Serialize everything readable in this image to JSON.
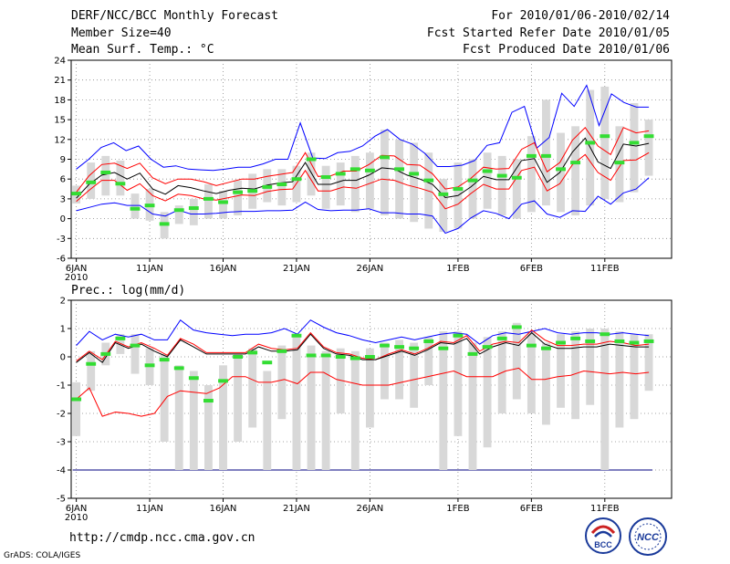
{
  "header": {
    "title": "DERF/NCC/BCC Monthly Forecast",
    "member_size": "Member Size=40",
    "period": "For 2010/01/06-2010/02/14",
    "started": "Fcst Started Refer Date 2010/01/05",
    "produced": "Fcst Produced Date 2010/01/06"
  },
  "footer": {
    "url": "http://cmdp.ncc.cma.gov.cn",
    "grads": "GrADS: COLA/IGES",
    "logo_left_text": "BCC",
    "logo_right_text": "NCC"
  },
  "colors": {
    "max_line": "#0000ff",
    "min_line": "#0000ff",
    "upper_line": "#ff0000",
    "lower_line": "#ff0000",
    "mean_line": "#000000",
    "box": "#d8d8d8",
    "marker": "#33dd33",
    "floor_line": "#000080"
  },
  "chart_data": [
    {
      "type": "box-line",
      "title": "Mean Surf. Temp.: °C",
      "ylim": [
        -6,
        24
      ],
      "yticks": [
        "24",
        "21",
        "18",
        "15",
        "12",
        "9",
        "6",
        "3",
        "0",
        "-3",
        "-6"
      ],
      "x_tick_labels": [
        "6JAN",
        "11JAN",
        "16JAN",
        "21JAN",
        "26JAN",
        "1FEB",
        "6FEB",
        "11FEB"
      ],
      "x_tick_days": [
        1,
        6,
        11,
        16,
        21,
        27,
        32,
        37
      ],
      "year_label": "2010",
      "days": 40,
      "series": [
        {
          "name": "max",
          "values": [
            7.5,
            9,
            10.8,
            11.5,
            10.3,
            11,
            9,
            7.8,
            8,
            7.5,
            7.4,
            7.3,
            7.5,
            7.8,
            7.8,
            8.3,
            9,
            9,
            14.5,
            9.2,
            9.1,
            10,
            10.2,
            11,
            12.5,
            13.5,
            12,
            11.3,
            9.9,
            7.9,
            7.9,
            8.1,
            8.8,
            11.1,
            11.5,
            16.1,
            17,
            10.7,
            12.3,
            19,
            17,
            20.2,
            14.1,
            18.9,
            17.6,
            16.9,
            16.9
          ]
        },
        {
          "name": "upper",
          "values": [
            4,
            6.5,
            8.2,
            8.4,
            7.6,
            8.4,
            6.2,
            5.3,
            6,
            6,
            5.6,
            5,
            5.5,
            6,
            6,
            6.4,
            6.7,
            7,
            10,
            6.4,
            6.5,
            7.2,
            7.2,
            8.2,
            9.6,
            9.5,
            8.2,
            8.1,
            6.8,
            4.5,
            4.8,
            6.1,
            7.8,
            7.5,
            7.6,
            10.5,
            11.5,
            7.1,
            8.5,
            11.9,
            13.8,
            11,
            9.7,
            13.8,
            13,
            13.3
          ]
        },
        {
          "name": "mean",
          "values": [
            3.1,
            5.2,
            6.6,
            7,
            6,
            6.9,
            4.5,
            3.7,
            5,
            4.7,
            4.2,
            3.8,
            4.3,
            4.6,
            4.5,
            5.1,
            5.4,
            5.6,
            8.5,
            5.2,
            5.2,
            5.8,
            5.8,
            6.6,
            7.7,
            7.5,
            6.6,
            6,
            5.2,
            3.2,
            3.5,
            4.8,
            6.4,
            5.9,
            5.9,
            8.8,
            9.1,
            5.5,
            7,
            10.1,
            12.2,
            8.6,
            7.6,
            11.3,
            11,
            11.4
          ]
        },
        {
          "name": "lower",
          "values": [
            2.6,
            4.3,
            5.8,
            5.8,
            4.3,
            5.3,
            3.5,
            2.7,
            3.7,
            3.5,
            3,
            2.8,
            3.2,
            3.6,
            3.5,
            4.1,
            4.4,
            4.5,
            7.3,
            4.2,
            4.2,
            4.8,
            4.6,
            5.3,
            6,
            5.8,
            5.1,
            4.6,
            4,
            1.5,
            2.2,
            3.8,
            5.2,
            4.5,
            4.5,
            7.3,
            7.8,
            4.2,
            5.3,
            8.2,
            9.7,
            7,
            5.8,
            8.8,
            8.9,
            10
          ]
        },
        {
          "name": "min",
          "values": [
            1.2,
            1.7,
            2.2,
            2.4,
            2,
            2,
            0.7,
            0.4,
            1.3,
            0.7,
            0.7,
            0.8,
            1,
            1.1,
            1.1,
            1.2,
            1.2,
            1.3,
            2.5,
            1.4,
            1.2,
            1.3,
            1.3,
            1.5,
            0.9,
            0.9,
            0.7,
            0.7,
            0.4,
            -2.2,
            -1.5,
            0.1,
            1.2,
            0.8,
            0,
            2.2,
            2.7,
            0.7,
            0.2,
            1.2,
            1.1,
            3.4,
            2.2,
            3.9,
            4.5,
            6.2
          ]
        }
      ],
      "boxes": [
        {
          "min": 2.3,
          "max": 5.0,
          "marker": 3.8
        },
        {
          "min": 3.0,
          "max": 8.5,
          "marker": 5.5
        },
        {
          "min": 3.5,
          "max": 9.5,
          "marker": 7.0
        },
        {
          "min": 3.5,
          "max": 8.8,
          "marker": 5.3
        },
        {
          "min": 0.0,
          "max": 3.8,
          "marker": 1.5
        },
        {
          "min": -0.3,
          "max": 4.5,
          "marker": 2.0
        },
        {
          "min": -3.0,
          "max": 1.0,
          "marker": -0.8
        },
        {
          "min": -0.8,
          "max": 2.0,
          "marker": 1.3
        },
        {
          "min": -1.0,
          "max": 3.0,
          "marker": 1.6
        },
        {
          "min": 0.0,
          "max": 5.2,
          "marker": 3.0
        },
        {
          "min": 0.0,
          "max": 4.2,
          "marker": 2.5
        },
        {
          "min": 0.5,
          "max": 5.8,
          "marker": 4.0
        },
        {
          "min": 1.5,
          "max": 6.8,
          "marker": 4.2
        },
        {
          "min": 2.5,
          "max": 7.5,
          "marker": 4.8
        },
        {
          "min": 2.0,
          "max": 7.5,
          "marker": 5.2
        },
        {
          "min": 2.5,
          "max": 8.0,
          "marker": 6.0
        },
        {
          "min": 3.5,
          "max": 10.0,
          "marker": 9.0
        },
        {
          "min": 1.5,
          "max": 8.0,
          "marker": 6.3
        },
        {
          "min": 2.0,
          "max": 8.5,
          "marker": 6.8
        },
        {
          "min": 1.0,
          "max": 9.5,
          "marker": 7.5
        },
        {
          "min": 1.5,
          "max": 10.0,
          "marker": 7.3
        },
        {
          "min": 0.5,
          "max": 13.5,
          "marker": 9.3
        },
        {
          "min": 0.0,
          "max": 12.0,
          "marker": 7.5
        },
        {
          "min": -0.5,
          "max": 11.5,
          "marker": 6.8
        },
        {
          "min": -1.5,
          "max": 10.0,
          "marker": 5.8
        },
        {
          "min": -2.0,
          "max": 6.0,
          "marker": 3.7
        },
        {
          "min": -1.5,
          "max": 8.5,
          "marker": 4.5
        },
        {
          "min": 0.0,
          "max": 9.0,
          "marker": 5.8
        },
        {
          "min": 1.5,
          "max": 10.0,
          "marker": 7.2
        },
        {
          "min": 0.5,
          "max": 9.5,
          "marker": 6.5
        },
        {
          "min": 0.0,
          "max": 9.0,
          "marker": 6.2
        },
        {
          "min": 1.0,
          "max": 12.5,
          "marker": 9.5
        },
        {
          "min": 2.0,
          "max": 18.0,
          "marker": 9.5
        },
        {
          "min": 1.0,
          "max": 13.0,
          "marker": 7.5
        },
        {
          "min": 0.5,
          "max": 14.0,
          "marker": 8.5
        },
        {
          "min": 2.0,
          "max": 19.5,
          "marker": 11.5
        },
        {
          "min": 3.0,
          "max": 20.0,
          "marker": 12.5
        },
        {
          "min": 2.5,
          "max": 14.0,
          "marker": 8.5
        },
        {
          "min": 4.0,
          "max": 17.5,
          "marker": 11.5
        },
        {
          "min": 6.5,
          "max": 15.0,
          "marker": 12.5
        }
      ]
    },
    {
      "type": "box-line",
      "title": "Prec.: log(mm/d)",
      "ylim": [
        -5,
        2
      ],
      "yticks": [
        "2",
        "1",
        "0",
        "-1",
        "-2",
        "-3",
        "-4",
        "-5"
      ],
      "x_tick_labels": [
        "6JAN",
        "11JAN",
        "16JAN",
        "21JAN",
        "26JAN",
        "1FEB",
        "6FEB",
        "11FEB"
      ],
      "x_tick_days": [
        1,
        6,
        11,
        16,
        21,
        27,
        32,
        37
      ],
      "year_label": "2010",
      "days": 40,
      "floor_value": -4,
      "series": [
        {
          "name": "max",
          "values": [
            0.4,
            0.9,
            0.6,
            0.8,
            0.7,
            0.8,
            0.6,
            0.6,
            1.3,
            0.95,
            0.85,
            0.8,
            0.75,
            0.8,
            0.8,
            0.85,
            1.0,
            0.8,
            1.3,
            1.05,
            0.85,
            0.75,
            0.6,
            0.5,
            0.6,
            0.7,
            0.6,
            0.7,
            0.8,
            0.85,
            0.8,
            0.45,
            0.75,
            0.85,
            0.8,
            0.9,
            1.0,
            0.85,
            0.8,
            0.85,
            0.85,
            0.8,
            0.85,
            0.8,
            0.75
          ]
        },
        {
          "name": "upper",
          "values": [
            -0.15,
            0.2,
            -0.1,
            0.55,
            0.35,
            0.5,
            0.3,
            0.05,
            0.65,
            0.45,
            0.15,
            0.15,
            0.15,
            0.15,
            0.45,
            0.3,
            0.25,
            0.3,
            0.85,
            0.35,
            0.15,
            0.1,
            -0.05,
            -0.1,
            0.1,
            0.25,
            0.1,
            0.3,
            0.55,
            0.5,
            0.75,
            0.2,
            0.45,
            0.55,
            0.5,
            0.95,
            0.6,
            0.4,
            0.4,
            0.45,
            0.45,
            0.55,
            0.5,
            0.4,
            0.45
          ]
        },
        {
          "name": "mean",
          "values": [
            -0.2,
            0.15,
            -0.2,
            0.5,
            0.3,
            0.45,
            0.2,
            0.0,
            0.6,
            0.35,
            0.1,
            0.1,
            0.1,
            0.1,
            0.35,
            0.2,
            0.2,
            0.25,
            0.8,
            0.3,
            0.1,
            0.05,
            -0.1,
            -0.1,
            0.05,
            0.2,
            0.05,
            0.25,
            0.5,
            0.45,
            0.65,
            0.1,
            0.35,
            0.5,
            0.4,
            0.85,
            0.45,
            0.3,
            0.3,
            0.35,
            0.35,
            0.45,
            0.4,
            0.35,
            0.35
          ]
        },
        {
          "name": "lower",
          "values": [
            -1.5,
            -1.1,
            -2.1,
            -1.95,
            -2.0,
            -2.1,
            -2.0,
            -1.4,
            -1.2,
            -1.25,
            -1.3,
            -1.1,
            -0.7,
            -0.7,
            -0.9,
            -0.9,
            -0.8,
            -0.95,
            -0.55,
            -0.55,
            -0.8,
            -0.9,
            -1.0,
            -1.0,
            -1.0,
            -0.9,
            -0.8,
            -0.7,
            -0.6,
            -0.5,
            -0.7,
            -0.7,
            -0.7,
            -0.5,
            -0.4,
            -0.8,
            -0.8,
            -0.7,
            -0.65,
            -0.5,
            -0.55,
            -0.6,
            -0.55,
            -0.6,
            -0.55
          ]
        },
        {
          "name": "min",
          "values": [
            -4,
            -4,
            -4,
            -4,
            -4,
            -4,
            -4,
            -4,
            -4,
            -4,
            -4,
            -4,
            -4,
            -4,
            -4,
            -4,
            -4,
            -4,
            -4,
            -4,
            -4,
            -4,
            -4,
            -4,
            -4,
            -4,
            -4,
            -4,
            -4,
            -4,
            -4,
            -4,
            -4,
            -4,
            -4,
            -4,
            -4,
            -4,
            -4,
            -4
          ]
        }
      ],
      "boxes": [
        {
          "min": -2.8,
          "max": -0.9,
          "marker": -1.5
        },
        {
          "min": -1.2,
          "max": 0.2,
          "marker": -0.25
        },
        {
          "min": -0.3,
          "max": 0.5,
          "marker": 0.1
        },
        {
          "min": 0.1,
          "max": 0.8,
          "marker": 0.65
        },
        {
          "min": -0.6,
          "max": 0.8,
          "marker": 0.4
        },
        {
          "min": -1.0,
          "max": 0.3,
          "marker": -0.3
        },
        {
          "min": -3.0,
          "max": 0.1,
          "marker": -0.1
        },
        {
          "min": -4.0,
          "max": -0.3,
          "marker": -0.4
        },
        {
          "min": -4.0,
          "max": -0.5,
          "marker": -0.75
        },
        {
          "min": -4.0,
          "max": -1.0,
          "marker": -1.55
        },
        {
          "min": -4.0,
          "max": -0.3,
          "marker": -0.85
        },
        {
          "min": -3.0,
          "max": 0.1,
          "marker": 0.0
        },
        {
          "min": -2.5,
          "max": 0.3,
          "marker": 0.15
        },
        {
          "min": -4.0,
          "max": -0.5,
          "marker": -0.2
        },
        {
          "min": -2.2,
          "max": 0.4,
          "marker": 0.2
        },
        {
          "min": -4.0,
          "max": 0.8,
          "marker": 0.75
        },
        {
          "min": -4.0,
          "max": 0.4,
          "marker": 0.05
        },
        {
          "min": -4.0,
          "max": 0.2,
          "marker": 0.05
        },
        {
          "min": -2.0,
          "max": 0.3,
          "marker": 0.0
        },
        {
          "min": -4.0,
          "max": 0.2,
          "marker": -0.05
        },
        {
          "min": -2.5,
          "max": 0.3,
          "marker": 0.0
        },
        {
          "min": -1.5,
          "max": 0.5,
          "marker": 0.4
        },
        {
          "min": -1.5,
          "max": 0.6,
          "marker": 0.35
        },
        {
          "min": -1.8,
          "max": 0.5,
          "marker": 0.3
        },
        {
          "min": -1.0,
          "max": 0.7,
          "marker": 0.55
        },
        {
          "min": -4.0,
          "max": 0.9,
          "marker": 0.3
        },
        {
          "min": -2.8,
          "max": 0.9,
          "marker": 0.75
        },
        {
          "min": -4.0,
          "max": 0.5,
          "marker": 0.1
        },
        {
          "min": -3.2,
          "max": 0.7,
          "marker": 0.35
        },
        {
          "min": -2.0,
          "max": 0.9,
          "marker": 0.65
        },
        {
          "min": -1.5,
          "max": 1.2,
          "marker": 1.05
        },
        {
          "min": -2.0,
          "max": 0.9,
          "marker": 0.4
        },
        {
          "min": -2.4,
          "max": 0.5,
          "marker": 0.3
        },
        {
          "min": -1.8,
          "max": 0.8,
          "marker": 0.5
        },
        {
          "min": -2.2,
          "max": 0.9,
          "marker": 0.65
        },
        {
          "min": -1.7,
          "max": 1.0,
          "marker": 0.55
        },
        {
          "min": -4.0,
          "max": 1.0,
          "marker": 0.8
        },
        {
          "min": -2.5,
          "max": 0.9,
          "marker": 0.55
        },
        {
          "min": -2.2,
          "max": 0.8,
          "marker": 0.5
        },
        {
          "min": -1.2,
          "max": 0.8,
          "marker": 0.55
        }
      ]
    }
  ]
}
